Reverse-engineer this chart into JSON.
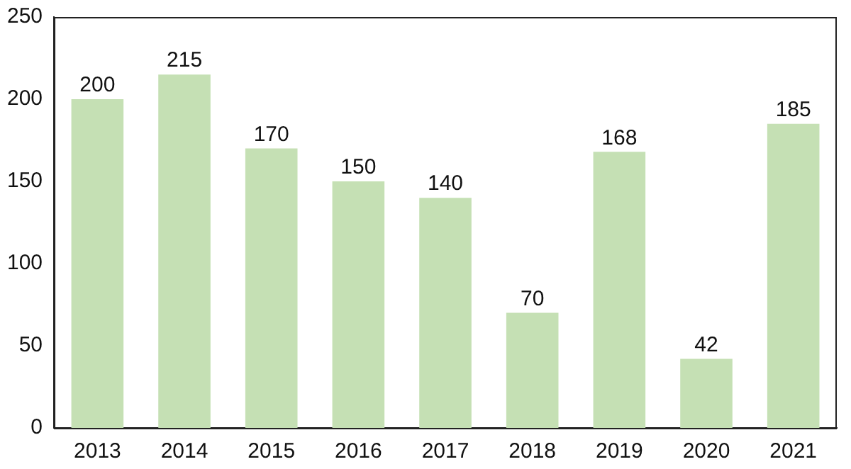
{
  "chart_data": {
    "type": "bar",
    "categories": [
      "2013",
      "2014",
      "2015",
      "2016",
      "2017",
      "2018",
      "2019",
      "2020",
      "2021"
    ],
    "values": [
      200,
      215,
      170,
      150,
      140,
      70,
      168,
      42,
      185
    ],
    "color": "#c5e0b4",
    "ylim": [
      0,
      250
    ],
    "yticks": [
      0,
      50,
      100,
      150,
      200,
      250
    ],
    "grid": false,
    "legend": false,
    "data_labels": true
  }
}
